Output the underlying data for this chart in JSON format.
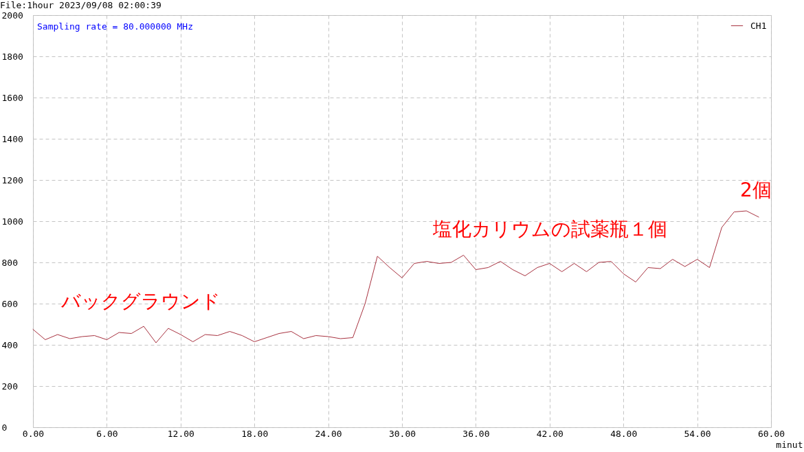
{
  "chart_data": {
    "type": "line",
    "title": "File:1hour 2023/09/08 02:00:39",
    "xlabel": "minut",
    "annotations": [
      "Sampling rate = 80.000000 MHz",
      "バックグラウンド",
      "塩化カリウムの試薬瓶１個",
      "2個"
    ],
    "x": [
      0,
      1,
      2,
      3,
      4,
      5,
      6,
      7,
      8,
      9,
      10,
      11,
      12,
      13,
      14,
      15,
      16,
      17,
      18,
      19,
      20,
      21,
      22,
      23,
      24,
      25,
      26,
      27,
      28,
      29,
      30,
      31,
      32,
      33,
      34,
      35,
      36,
      37,
      38,
      39,
      40,
      41,
      42,
      43,
      44,
      45,
      46,
      47,
      48,
      49,
      50,
      51,
      52,
      53,
      54,
      55,
      56,
      57,
      58,
      59
    ],
    "series": [
      {
        "name": "CH1",
        "color": "#a83240",
        "values": [
          475,
          425,
          450,
          430,
          440,
          445,
          425,
          460,
          455,
          490,
          410,
          480,
          450,
          415,
          450,
          445,
          465,
          445,
          415,
          435,
          455,
          465,
          430,
          445,
          440,
          430,
          435,
          600,
          830,
          775,
          725,
          795,
          805,
          795,
          800,
          835,
          765,
          775,
          805,
          765,
          735,
          775,
          795,
          755,
          795,
          755,
          800,
          805,
          745,
          705,
          775,
          770,
          815,
          780,
          815,
          775,
          970,
          1045,
          1050,
          1020
        ]
      }
    ],
    "xlim": [
      0,
      60
    ],
    "xticks": [
      {
        "value": 0,
        "label": "0.00"
      },
      {
        "value": 6,
        "label": "6.00"
      },
      {
        "value": 12,
        "label": "12.00"
      },
      {
        "value": 18,
        "label": "18.00"
      },
      {
        "value": 24,
        "label": "24.00"
      },
      {
        "value": 30,
        "label": "30.00"
      },
      {
        "value": 36,
        "label": "36.00"
      },
      {
        "value": 42,
        "label": "42.00"
      },
      {
        "value": 48,
        "label": "48.00"
      },
      {
        "value": 54,
        "label": "54.00"
      },
      {
        "value": 60,
        "label": "60.00"
      }
    ],
    "ylim": [
      0,
      2000
    ],
    "yticks": [
      0,
      200,
      400,
      600,
      800,
      1000,
      1200,
      1400,
      1600,
      1800,
      2000
    ],
    "grid": true,
    "legend": "top right"
  }
}
